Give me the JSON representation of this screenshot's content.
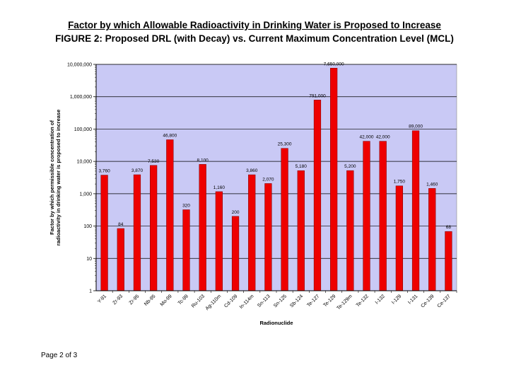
{
  "header": {
    "title_line1": "Factor by which Allowable Radioactivity in Drinking Water is Proposed to Increase",
    "title_line2": "FIGURE 2: Proposed DRL (with Decay) vs. Current Maximum Concentration Level (MCL)"
  },
  "footer": {
    "page_label": "Page 2 of 3"
  },
  "chart_data": {
    "type": "bar",
    "yscale": "log",
    "ylim": [
      1,
      10000000
    ],
    "yticks": [
      1,
      10,
      100,
      1000,
      10000,
      100000,
      1000000,
      10000000
    ],
    "ytick_labels": [
      "1",
      "10",
      "100",
      "1,000",
      "10,000",
      "100,000",
      "1,000,000",
      "10,000,000"
    ],
    "xlabel": "Radionuclide",
    "ylabel_line1": "Factor by which permissible concentration of",
    "ylabel_line2": "radioactivity in drinking water is proposed to increase",
    "categories": [
      "Y-91",
      "Zr-93",
      "Zr-95",
      "Nb-95",
      "Mo-99",
      "Tc-99",
      "Ru-103",
      "Ag-110m",
      "Cd-109",
      "In-114m",
      "Sn-113",
      "Sn-125",
      "Sb-124",
      "Te-127",
      "Te-129",
      "Te-129m",
      "Te-132",
      "I-132",
      "I-129",
      "I-131",
      "Ce-139",
      "Ce-137"
    ],
    "values": [
      3760,
      84,
      3870,
      7530,
      46800,
      320,
      8100,
      1160,
      200,
      3860,
      2070,
      25300,
      5180,
      791000,
      7650000,
      5200,
      42000,
      42000,
      1750,
      89000,
      1460,
      68
    ],
    "labels": [
      "3,760",
      "84",
      "3,870",
      "7,530",
      "46,800",
      "320",
      "8,100",
      "1,160",
      "200",
      "3,860",
      "2,070",
      "25,300",
      "5,180",
      "791,000",
      "7,650,000",
      "5,200",
      "42,000",
      "42,000",
      "1,750",
      "89,000",
      "1,460",
      "68"
    ],
    "colors": {
      "plot_bg": "#c9c9f5",
      "bar": "#ee0000",
      "bar_edge": "#7a0000",
      "grid": "#000000"
    }
  }
}
